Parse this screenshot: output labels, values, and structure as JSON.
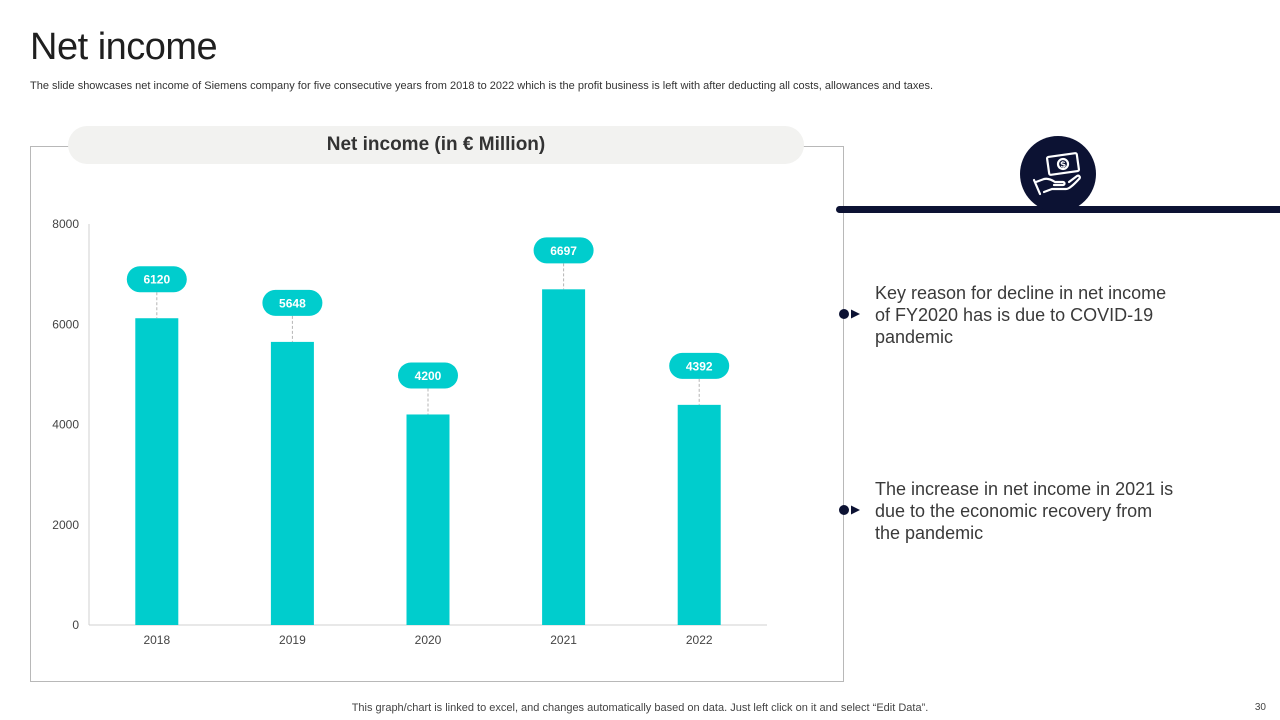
{
  "slide": {
    "title": "Net income",
    "subtitle": "The slide showcases net income of Siemens company for five  consecutive years from 2018 to 2022 which is the profit business is left with after deducting all costs, allowances and taxes.",
    "footer": "This graph/chart is linked to excel,  and changes automatically based on data. Just left click on it and select “Edit Data”.",
    "page_number": "30"
  },
  "insights": {
    "icon": "money-hand-icon",
    "points": [
      "Key reason for decline in net income of FY2020 has is due to COVID-19 pandemic",
      "The increase in net income in 2021 is due to the economic recovery from the pandemic"
    ]
  },
  "colors": {
    "bar": "#00CDCD",
    "label_pill": "#00CDCD",
    "accent_dark": "#0C1233"
  },
  "chart_data": {
    "type": "bar",
    "title": "Net income (in € Million)",
    "categories": [
      "2018",
      "2019",
      "2020",
      "2021",
      "2022"
    ],
    "values": [
      6120,
      5648,
      4200,
      6697,
      4392
    ],
    "ylim": [
      0,
      8000
    ],
    "yticks": [
      0,
      2000,
      4000,
      6000,
      8000
    ],
    "xlabel": "",
    "ylabel": "",
    "grid": false,
    "legend": "none",
    "data_labels": true
  }
}
